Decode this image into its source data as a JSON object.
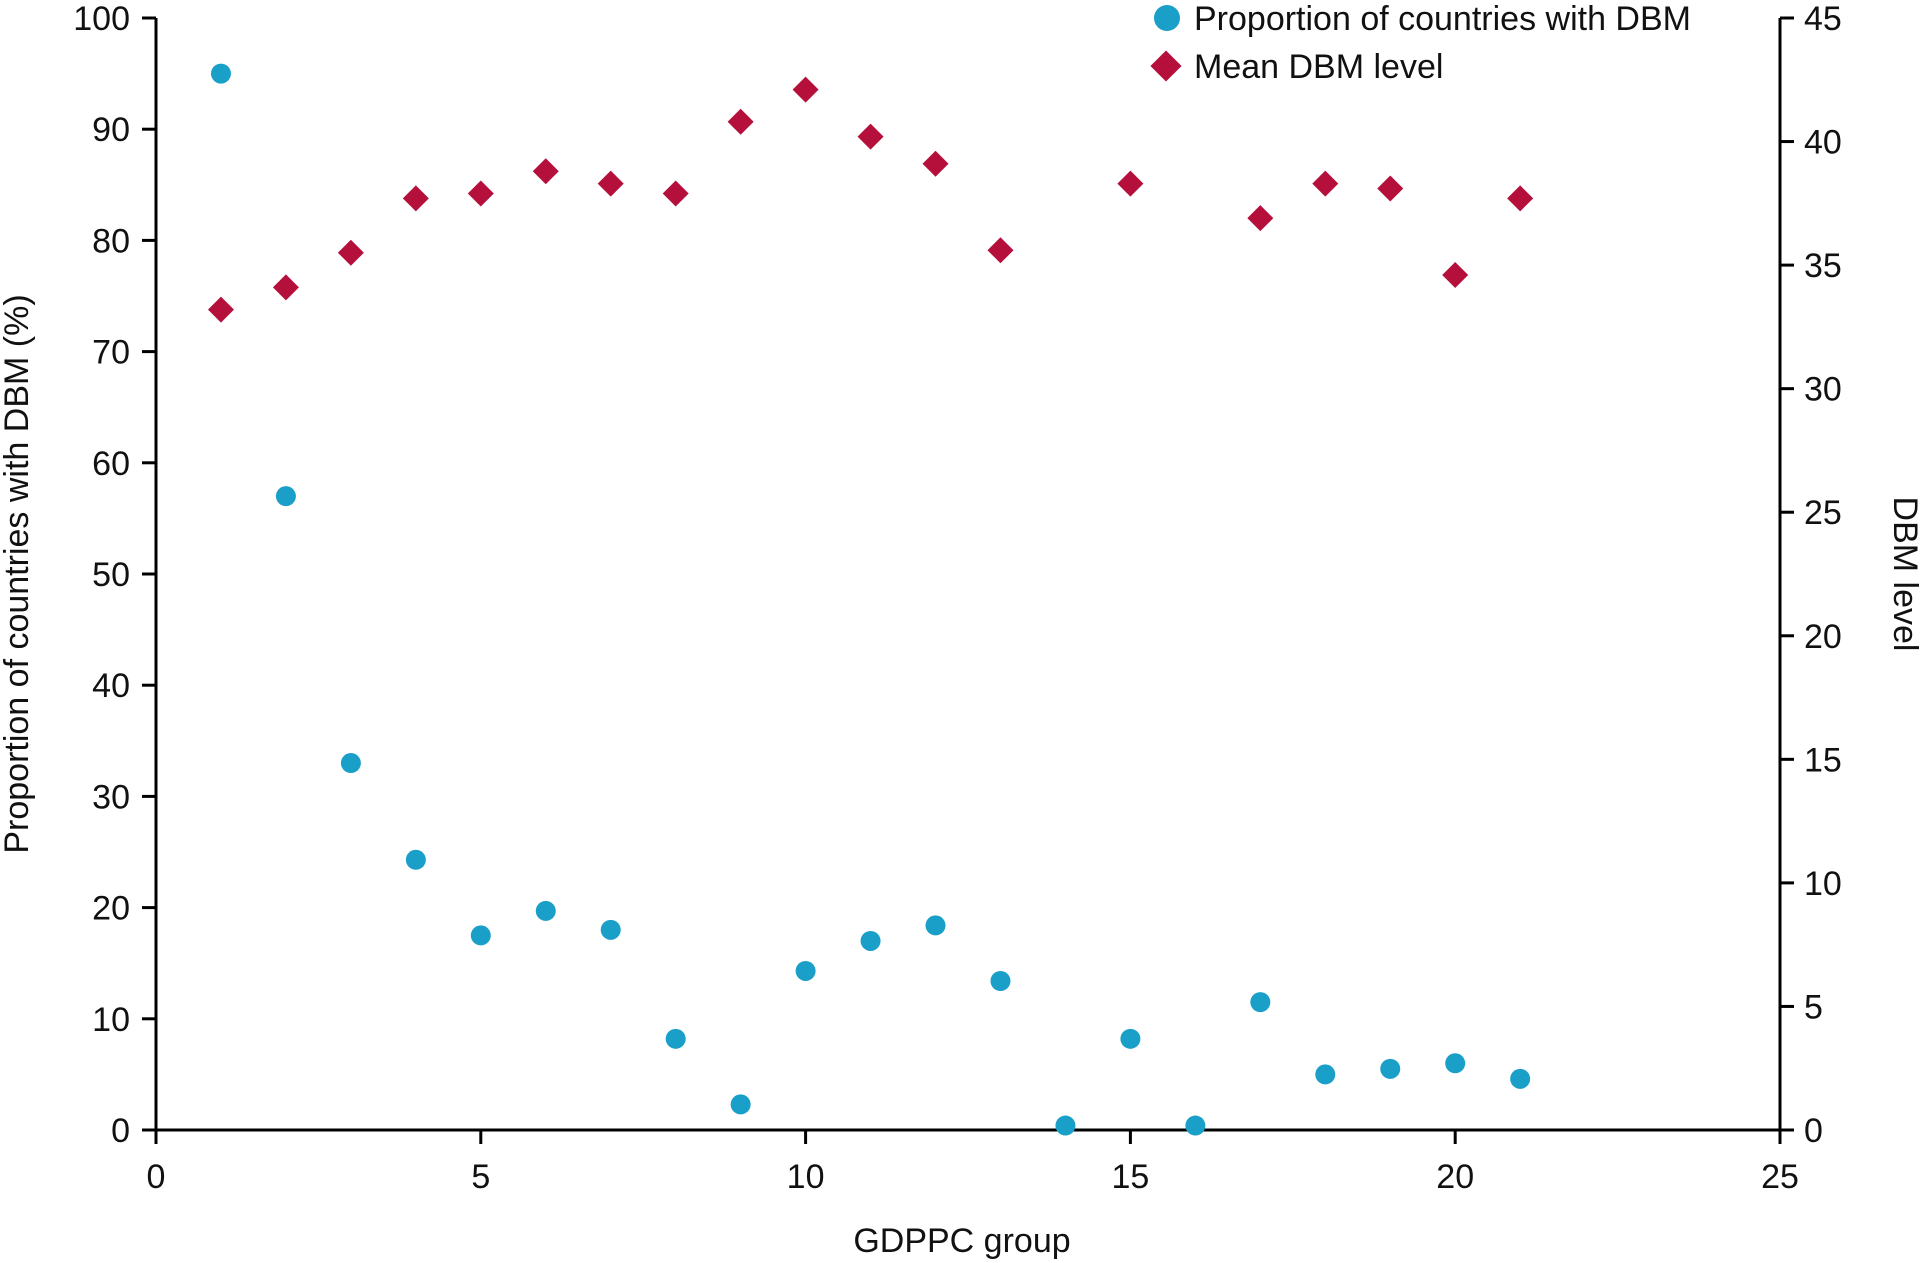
{
  "chart_data": {
    "type": "scatter",
    "xlabel": "GDPPC group",
    "ylabel_left": "Proportion of countries with DBM (%)",
    "ylabel_right": "DBM level",
    "xlim": [
      0,
      25
    ],
    "ylim_left": [
      0,
      100
    ],
    "ylim_right": [
      0,
      45
    ],
    "x_ticks": [
      0,
      5,
      10,
      15,
      20,
      25
    ],
    "y_left_ticks": [
      0,
      10,
      20,
      30,
      40,
      50,
      60,
      70,
      80,
      90,
      100
    ],
    "y_right_ticks": [
      0,
      5,
      10,
      15,
      20,
      25,
      30,
      35,
      40,
      45
    ],
    "grid": false,
    "legend_position": "top-right",
    "series": [
      {
        "name": "Proportion of countries with DBM",
        "axis": "left",
        "marker": "circle",
        "color": "#1aa0c8",
        "points": [
          [
            1,
            95
          ],
          [
            2,
            57
          ],
          [
            3,
            33
          ],
          [
            4,
            24.3
          ],
          [
            5,
            17.5
          ],
          [
            6,
            19.7
          ],
          [
            7,
            18
          ],
          [
            8,
            8.2
          ],
          [
            9,
            2.3
          ],
          [
            10,
            14.3
          ],
          [
            11,
            17
          ],
          [
            12,
            18.4
          ],
          [
            13,
            13.4
          ],
          [
            14,
            0.4
          ],
          [
            15,
            8.2
          ],
          [
            16,
            0.4
          ],
          [
            17,
            11.5
          ],
          [
            18,
            5
          ],
          [
            19,
            5.5
          ],
          [
            20,
            6
          ],
          [
            21,
            4.6
          ]
        ]
      },
      {
        "name": "Mean DBM level",
        "axis": "right",
        "marker": "diamond",
        "color": "#b5103c",
        "points": [
          [
            1,
            33.2
          ],
          [
            2,
            34.1
          ],
          [
            3,
            35.5
          ],
          [
            4,
            37.7
          ],
          [
            5,
            37.9
          ],
          [
            6,
            38.8
          ],
          [
            7,
            38.3
          ],
          [
            8,
            37.9
          ],
          [
            9,
            40.8
          ],
          [
            10,
            42.1
          ],
          [
            11,
            40.2
          ],
          [
            12,
            39.1
          ],
          [
            13,
            35.6
          ],
          [
            14,
            null
          ],
          [
            15,
            38.3
          ],
          [
            16,
            null
          ],
          [
            17,
            36.9
          ],
          [
            18,
            38.3
          ],
          [
            19,
            38.1
          ],
          [
            20,
            34.6
          ],
          [
            21,
            37.7
          ]
        ]
      }
    ]
  }
}
